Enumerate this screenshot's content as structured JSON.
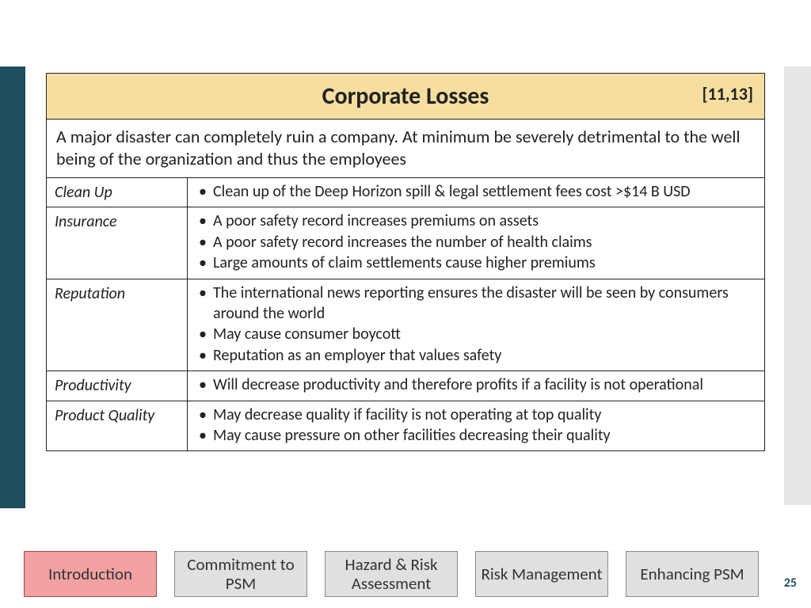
{
  "slide": {
    "title": "Corporate Losses",
    "reference": "[11,13]",
    "intro": "A major disaster can completely ruin a company. At minimum be severely detrimental to the well being of the organization and thus the employees",
    "rows": [
      {
        "label": "Clean Up",
        "bullets": [
          "Clean up of the Deep Horizon spill & legal settlement fees cost >$14 B USD"
        ]
      },
      {
        "label": "Insurance",
        "bullets": [
          "A poor safety record increases premiums on assets",
          "A poor safety record increases the number of health claims",
          "Large amounts of claim settlements cause higher premiums"
        ]
      },
      {
        "label": "Reputation",
        "bullets": [
          "The international news reporting ensures the disaster will be seen by consumers around the world",
          "May cause consumer boycott",
          "Reputation as an employer that values safety"
        ]
      },
      {
        "label": "Productivity",
        "bullets": [
          "Will decrease productivity and therefore profits if a facility is not operational"
        ]
      },
      {
        "label": "Product Quality",
        "bullets": [
          "May decrease quality if facility is not operating at top quality",
          "May cause pressure on other facilities decreasing their quality"
        ]
      }
    ],
    "page_number": "25"
  },
  "nav": {
    "tabs": [
      {
        "label": "Introduction",
        "active": true
      },
      {
        "label": "Commitment to PSM",
        "active": false
      },
      {
        "label": "Hazard & Risk Assessment",
        "active": false
      },
      {
        "label": "Risk Management",
        "active": false
      },
      {
        "label": "Enhancing PSM",
        "active": false
      }
    ]
  },
  "colors": {
    "accent_bar": "#1f4e5f",
    "right_bar": "#e6e6e6",
    "title_bg": "#f5dea0",
    "tab_bg": "#e0e0e0",
    "tab_active_bg": "#f2a2a2",
    "border": "#222222"
  }
}
